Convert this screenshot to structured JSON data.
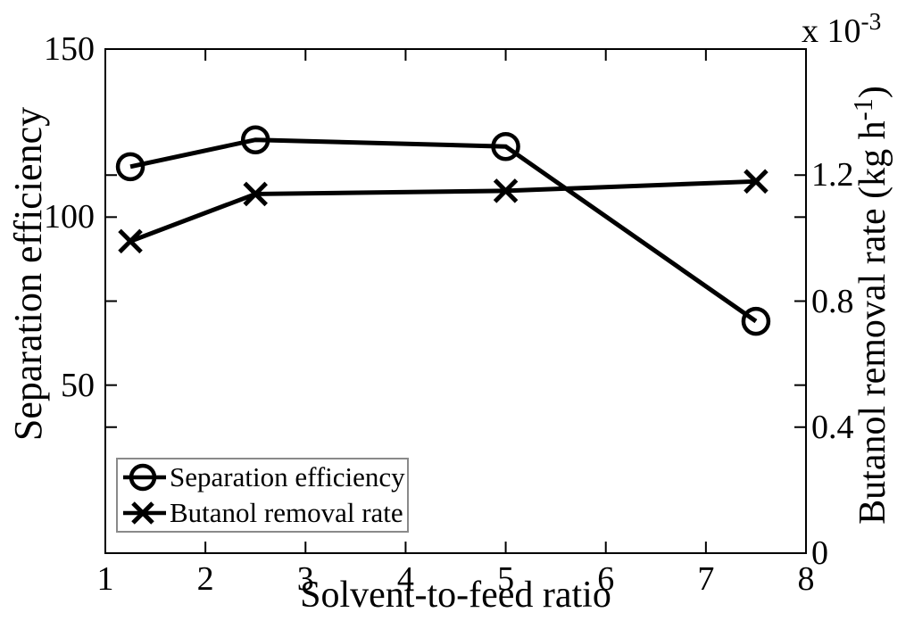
{
  "figure": {
    "background_color": "#ffffff",
    "ink_color": "#000000",
    "legend_border_color": "#8a8a8a"
  },
  "chart_data": {
    "type": "line",
    "title": "",
    "xlabel": "Solvent-to-feed ratio",
    "ylabel_left": "Separation efficiency",
    "ylabel_right": {
      "pre": "Butanol removal rate (kg h",
      "sup": "-1",
      "post": ")"
    },
    "right_axis_exponent": {
      "pre": "x 10",
      "sup": "-3"
    },
    "x": [
      1.25,
      2.5,
      5,
      7.5
    ],
    "series": [
      {
        "name": "Separation efficiency",
        "axis": "left",
        "marker": "circle",
        "values": [
          115,
          123,
          121,
          69
        ]
      },
      {
        "name": "Butanol removal rate",
        "axis": "right",
        "marker": "x",
        "unit": "kg h-1 (axis scaled by 10^-3)",
        "values_e3": [
          0.99,
          1.14,
          1.15,
          1.18
        ]
      }
    ],
    "xlim": [
      1,
      8
    ],
    "ylim_left": [
      0,
      150
    ],
    "ylim_right_e3": [
      0,
      1.6
    ],
    "xticks": [
      {
        "v": 1,
        "label": "1"
      },
      {
        "v": 2,
        "label": "2"
      },
      {
        "v": 3,
        "label": "3"
      },
      {
        "v": 4,
        "label": "4"
      },
      {
        "v": 5,
        "label": "5"
      },
      {
        "v": 6,
        "label": "6"
      },
      {
        "v": 7,
        "label": "7"
      },
      {
        "v": 8,
        "label": "8"
      }
    ],
    "yticks_left": [
      {
        "v": 50,
        "label": "50"
      },
      {
        "v": 100,
        "label": "100"
      },
      {
        "v": 150,
        "label": "150"
      }
    ],
    "yticks_right_e3": [
      {
        "v": 0,
        "label": "0"
      },
      {
        "v": 0.4,
        "label": "0.4"
      },
      {
        "v": 0.8,
        "label": "0.8"
      },
      {
        "v": 1.2,
        "label": "1.2"
      }
    ],
    "grid": false,
    "legend": {
      "position": "bottom-left",
      "entries": [
        {
          "label": "Separation efficiency",
          "marker": "circle"
        },
        {
          "label": "Butanol removal rate",
          "marker": "x"
        }
      ]
    }
  }
}
